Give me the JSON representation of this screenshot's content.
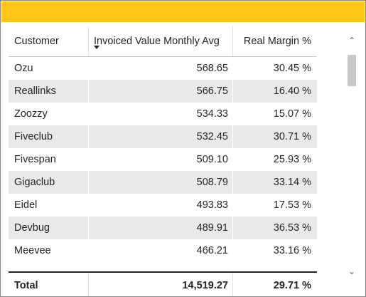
{
  "colors": {
    "accent": "#ffc61a"
  },
  "table": {
    "columns": [
      "Customer",
      "Invoiced Value Monthly Avg",
      "Real Margin %"
    ],
    "sorted_column": "Invoiced Value Monthly Avg",
    "sort_direction": "descending",
    "rows": [
      {
        "customer": "Ozu",
        "invoiced": "568.65",
        "margin": "30.45 %"
      },
      {
        "customer": "Reallinks",
        "invoiced": "566.75",
        "margin": "16.40 %"
      },
      {
        "customer": "Zoozzy",
        "invoiced": "534.33",
        "margin": "15.07 %"
      },
      {
        "customer": "Fiveclub",
        "invoiced": "532.45",
        "margin": "30.71 %"
      },
      {
        "customer": "Fivespan",
        "invoiced": "509.10",
        "margin": "25.93 %"
      },
      {
        "customer": "Gigaclub",
        "invoiced": "508.79",
        "margin": "33.14 %"
      },
      {
        "customer": "Eidel",
        "invoiced": "493.83",
        "margin": "17.53 %"
      },
      {
        "customer": "Devbug",
        "invoiced": "489.91",
        "margin": "36.53 %"
      },
      {
        "customer": "Meevee",
        "invoiced": "466.21",
        "margin": "33.16 %"
      }
    ],
    "total": {
      "label": "Total",
      "invoiced": "14,519.27",
      "margin": "29.71 %"
    }
  },
  "scrollbar": {
    "up_icon": "chevron-up-icon",
    "down_icon": "chevron-down-icon",
    "up_glyph": "⌃",
    "down_glyph": "⌄"
  }
}
